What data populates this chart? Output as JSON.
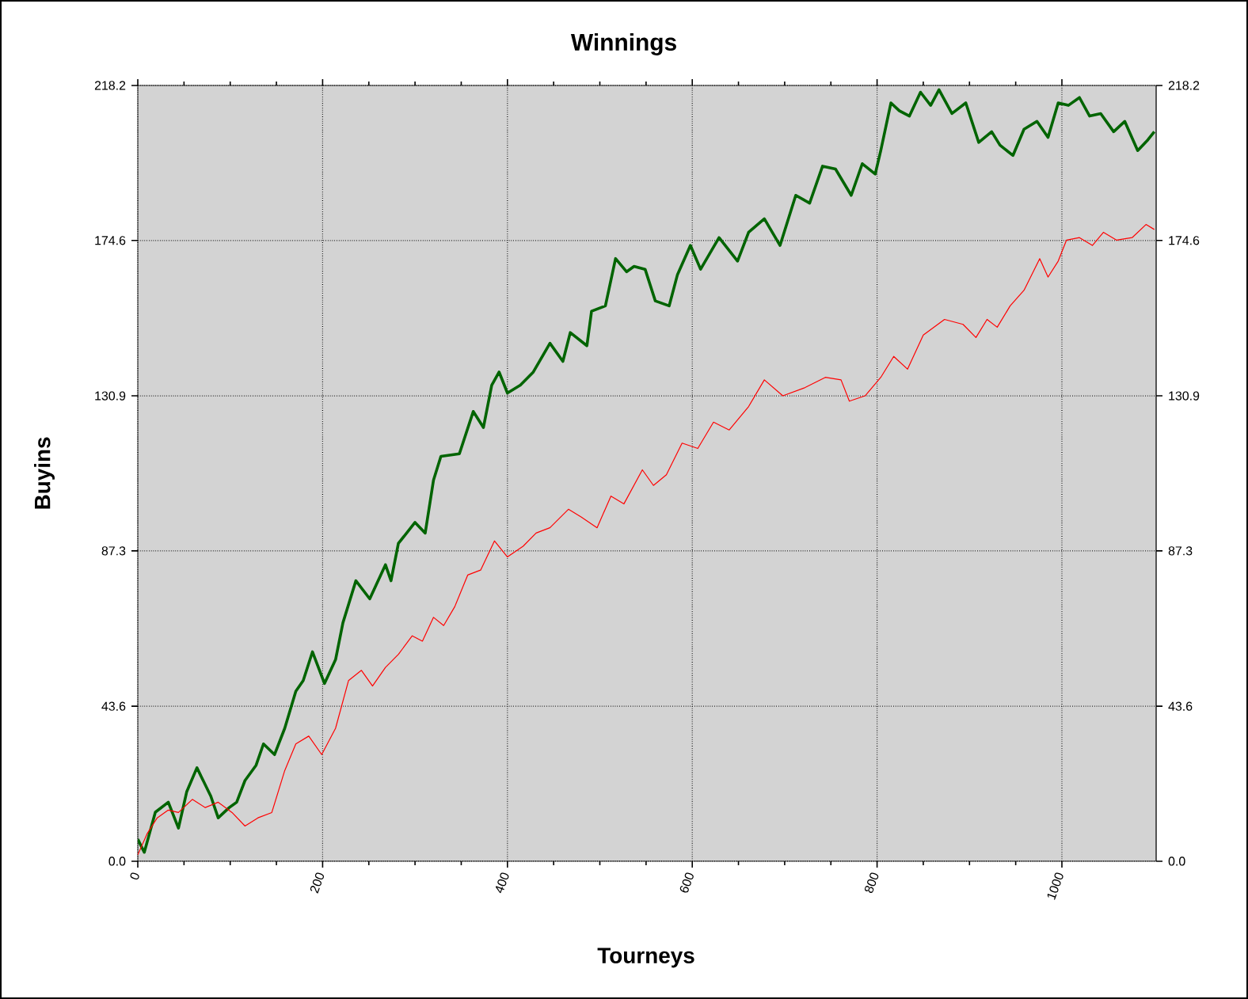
{
  "chart_data": {
    "type": "line",
    "title": "Winnings",
    "xlabel": "Tourneys",
    "ylabel": "Buyins",
    "xlim": [
      0,
      1102
    ],
    "xticks": [
      0,
      200,
      400,
      600,
      800,
      1000
    ],
    "ylim": [
      0,
      218.2
    ],
    "yticks": [
      {
        "value": 0,
        "label": "0.0"
      },
      43.6,
      87.3,
      130.9,
      174.6,
      218.2
    ],
    "y2lim": [
      0,
      218.2
    ],
    "y2ticks": [
      {
        "value": 0,
        "label": "0.0"
      },
      43.6,
      87.3,
      130.9,
      174.6,
      218.2
    ],
    "grid": true,
    "marker": "none",
    "line_style": "solid",
    "series": [
      {
        "color": "#006400",
        "x": [
          0,
          7,
          19,
          33,
          44,
          53,
          64,
          79,
          87,
          99,
          107,
          116,
          128,
          136,
          148,
          159,
          171,
          179,
          189,
          202,
          214,
          222,
          236,
          251,
          268,
          274,
          282,
          300,
          311,
          320,
          328,
          348,
          363,
          374,
          383,
          391,
          400,
          414,
          428,
          446,
          460,
          468,
          486,
          491,
          506,
          517,
          529,
          537,
          549,
          560,
          575,
          584,
          598,
          609,
          629,
          649,
          661,
          678,
          695,
          712,
          727,
          741,
          755,
          772,
          784,
          798,
          804,
          815,
          824,
          835,
          847,
          858,
          867,
          881,
          896,
          910,
          924,
          933,
          947,
          959,
          973,
          985,
          996,
          1007,
          1019,
          1030,
          1042,
          1056,
          1068,
          1082,
          1093,
          1100
        ],
        "values": [
          6.2,
          2.5,
          13.8,
          16.6,
          9.3,
          19.6,
          26.3,
          18.3,
          12.2,
          15.1,
          16.6,
          22.7,
          27,
          33,
          30,
          37.4,
          47.8,
          50.8,
          58.9,
          50,
          56.7,
          67.1,
          78.9,
          73.8,
          83.4,
          78.9,
          89.4,
          95.3,
          92.3,
          107.2,
          113.9,
          114.6,
          126.5,
          122,
          133.9,
          137.6,
          131.7,
          133.9,
          137.6,
          145.7,
          140.6,
          148.7,
          145,
          154.7,
          156.2,
          169.5,
          165.8,
          167.3,
          166.5,
          157.6,
          156.2,
          165,
          173.2,
          166.5,
          175.4,
          168.8,
          176.9,
          180.7,
          173.2,
          187.3,
          185.1,
          195.5,
          194.7,
          187.3,
          196.2,
          193.3,
          199.9,
          213.3,
          211.1,
          209.6,
          216.3,
          212.6,
          217,
          210.3,
          213.3,
          202.2,
          205.2,
          201.4,
          198.5,
          205.9,
          208.1,
          203.6,
          213.3,
          212.6,
          214.8,
          209.6,
          210.3,
          205.2,
          208.1,
          199.9,
          202.9,
          205.2
        ]
      },
      {
        "color": "#ff0000",
        "x": [
          0,
          10,
          21,
          33,
          44,
          59,
          73,
          87,
          102,
          116,
          130,
          145,
          159,
          171,
          185,
          199,
          214,
          228,
          242,
          254,
          268,
          282,
          297,
          308,
          320,
          331,
          343,
          357,
          371,
          386,
          400,
          417,
          431,
          446,
          466,
          480,
          497,
          512,
          526,
          546,
          558,
          572,
          589,
          606,
          623,
          640,
          661,
          678,
          698,
          721,
          744,
          761,
          770,
          787,
          804,
          818,
          833,
          850,
          873,
          893,
          907,
          919,
          930,
          944,
          959,
          976,
          985,
          996,
          1005,
          1019,
          1033,
          1045,
          1059,
          1076,
          1091,
          1100
        ],
        "values": [
          1.8,
          7.7,
          12.2,
          14.4,
          13.7,
          17.4,
          15.1,
          16.6,
          13.7,
          9.9,
          12.2,
          13.7,
          25.5,
          33,
          35.2,
          30,
          37.4,
          50.8,
          53.7,
          49.3,
          54.5,
          58.2,
          63.4,
          61.9,
          68.6,
          66.3,
          71.6,
          80.5,
          81.9,
          90.1,
          85.6,
          88.6,
          92.3,
          93.8,
          99,
          96.8,
          93.8,
          102.7,
          100.5,
          110.1,
          105.7,
          108.7,
          117.6,
          116.1,
          123.5,
          121.3,
          127.9,
          135.4,
          130.9,
          133.1,
          136.1,
          135.4,
          129.4,
          130.9,
          136.1,
          142,
          138.4,
          148,
          152.4,
          151,
          147.3,
          152.4,
          150.2,
          156.2,
          160.6,
          169.5,
          164.3,
          168.8,
          174.7,
          175.4,
          173.2,
          176.9,
          174.7,
          175.4,
          179.1,
          177.7
        ]
      }
    ]
  }
}
